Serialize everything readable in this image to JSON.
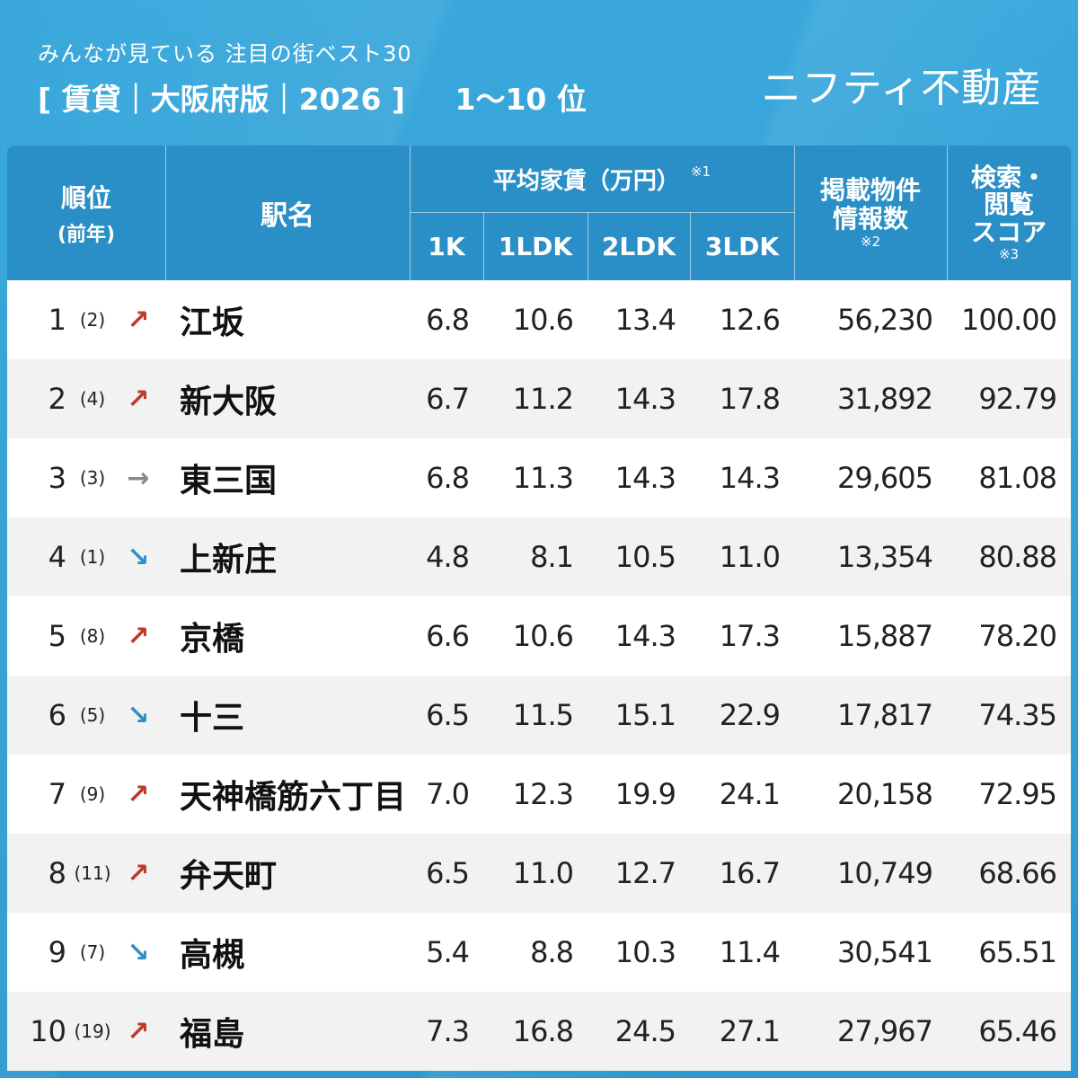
{
  "header": {
    "subtitle": "みんなが見ている 注目の街ベスト30",
    "title_part1": "[ 賃貸｜大阪府版｜2026 ]",
    "title_part2": "1〜10 位",
    "brand": "ニフティ不動産"
  },
  "columns": {
    "rank": "順位",
    "rank_prev": "(前年)",
    "station": "駅名",
    "avg_rent": "平均家賃（万円）",
    "avg_rent_note": "※1",
    "k1": "1K",
    "ldk1": "1LDK",
    "ldk2": "2LDK",
    "ldk3": "3LDK",
    "listings_line1": "掲載物件",
    "listings_line2": "情報数",
    "listings_note": "※2",
    "score_line1": "検索・",
    "score_line2": "閲覧",
    "score_line3": "スコア",
    "score_note": "※3"
  },
  "rows": [
    {
      "rank": "1",
      "prev": "(2)",
      "trend": "up",
      "arrow": "↗",
      "station": "江坂",
      "k1": "6.8",
      "ldk1": "10.6",
      "ldk2": "13.4",
      "ldk3": "12.6",
      "listings": "56,230",
      "score": "100.00"
    },
    {
      "rank": "2",
      "prev": "(4)",
      "trend": "up",
      "arrow": "↗",
      "station": "新大阪",
      "k1": "6.7",
      "ldk1": "11.2",
      "ldk2": "14.3",
      "ldk3": "17.8",
      "listings": "31,892",
      "score": "92.79"
    },
    {
      "rank": "3",
      "prev": "(3)",
      "trend": "same",
      "arrow": "→",
      "station": "東三国",
      "k1": "6.8",
      "ldk1": "11.3",
      "ldk2": "14.3",
      "ldk3": "14.3",
      "listings": "29,605",
      "score": "81.08"
    },
    {
      "rank": "4",
      "prev": "(1)",
      "trend": "down",
      "arrow": "↘",
      "station": "上新庄",
      "k1": "4.8",
      "ldk1": "8.1",
      "ldk2": "10.5",
      "ldk3": "11.0",
      "listings": "13,354",
      "score": "80.88"
    },
    {
      "rank": "5",
      "prev": "(8)",
      "trend": "up",
      "arrow": "↗",
      "station": "京橋",
      "k1": "6.6",
      "ldk1": "10.6",
      "ldk2": "14.3",
      "ldk3": "17.3",
      "listings": "15,887",
      "score": "78.20"
    },
    {
      "rank": "6",
      "prev": "(5)",
      "trend": "down",
      "arrow": "↘",
      "station": "十三",
      "k1": "6.5",
      "ldk1": "11.5",
      "ldk2": "15.1",
      "ldk3": "22.9",
      "listings": "17,817",
      "score": "74.35"
    },
    {
      "rank": "7",
      "prev": "(9)",
      "trend": "up",
      "arrow": "↗",
      "station": "天神橋筋六丁目",
      "k1": "7.0",
      "ldk1": "12.3",
      "ldk2": "19.9",
      "ldk3": "24.1",
      "listings": "20,158",
      "score": "72.95"
    },
    {
      "rank": "8",
      "prev": "(11)",
      "trend": "up",
      "arrow": "↗",
      "station": "弁天町",
      "k1": "6.5",
      "ldk1": "11.0",
      "ldk2": "12.7",
      "ldk3": "16.7",
      "listings": "10,749",
      "score": "68.66"
    },
    {
      "rank": "9",
      "prev": "(7)",
      "trend": "down",
      "arrow": "↘",
      "station": "高槻",
      "k1": "5.4",
      "ldk1": "8.8",
      "ldk2": "10.3",
      "ldk3": "11.4",
      "listings": "30,541",
      "score": "65.51"
    },
    {
      "rank": "10",
      "prev": "(19)",
      "trend": "up",
      "arrow": "↗",
      "station": "福島",
      "k1": "7.3",
      "ldk1": "16.8",
      "ldk2": "24.5",
      "ldk3": "27.1",
      "listings": "27,967",
      "score": "65.46"
    }
  ],
  "colors": {
    "up": "#c0392b",
    "down": "#2f8fc9",
    "same": "#888888",
    "header_bg": "#2a8fc6"
  }
}
